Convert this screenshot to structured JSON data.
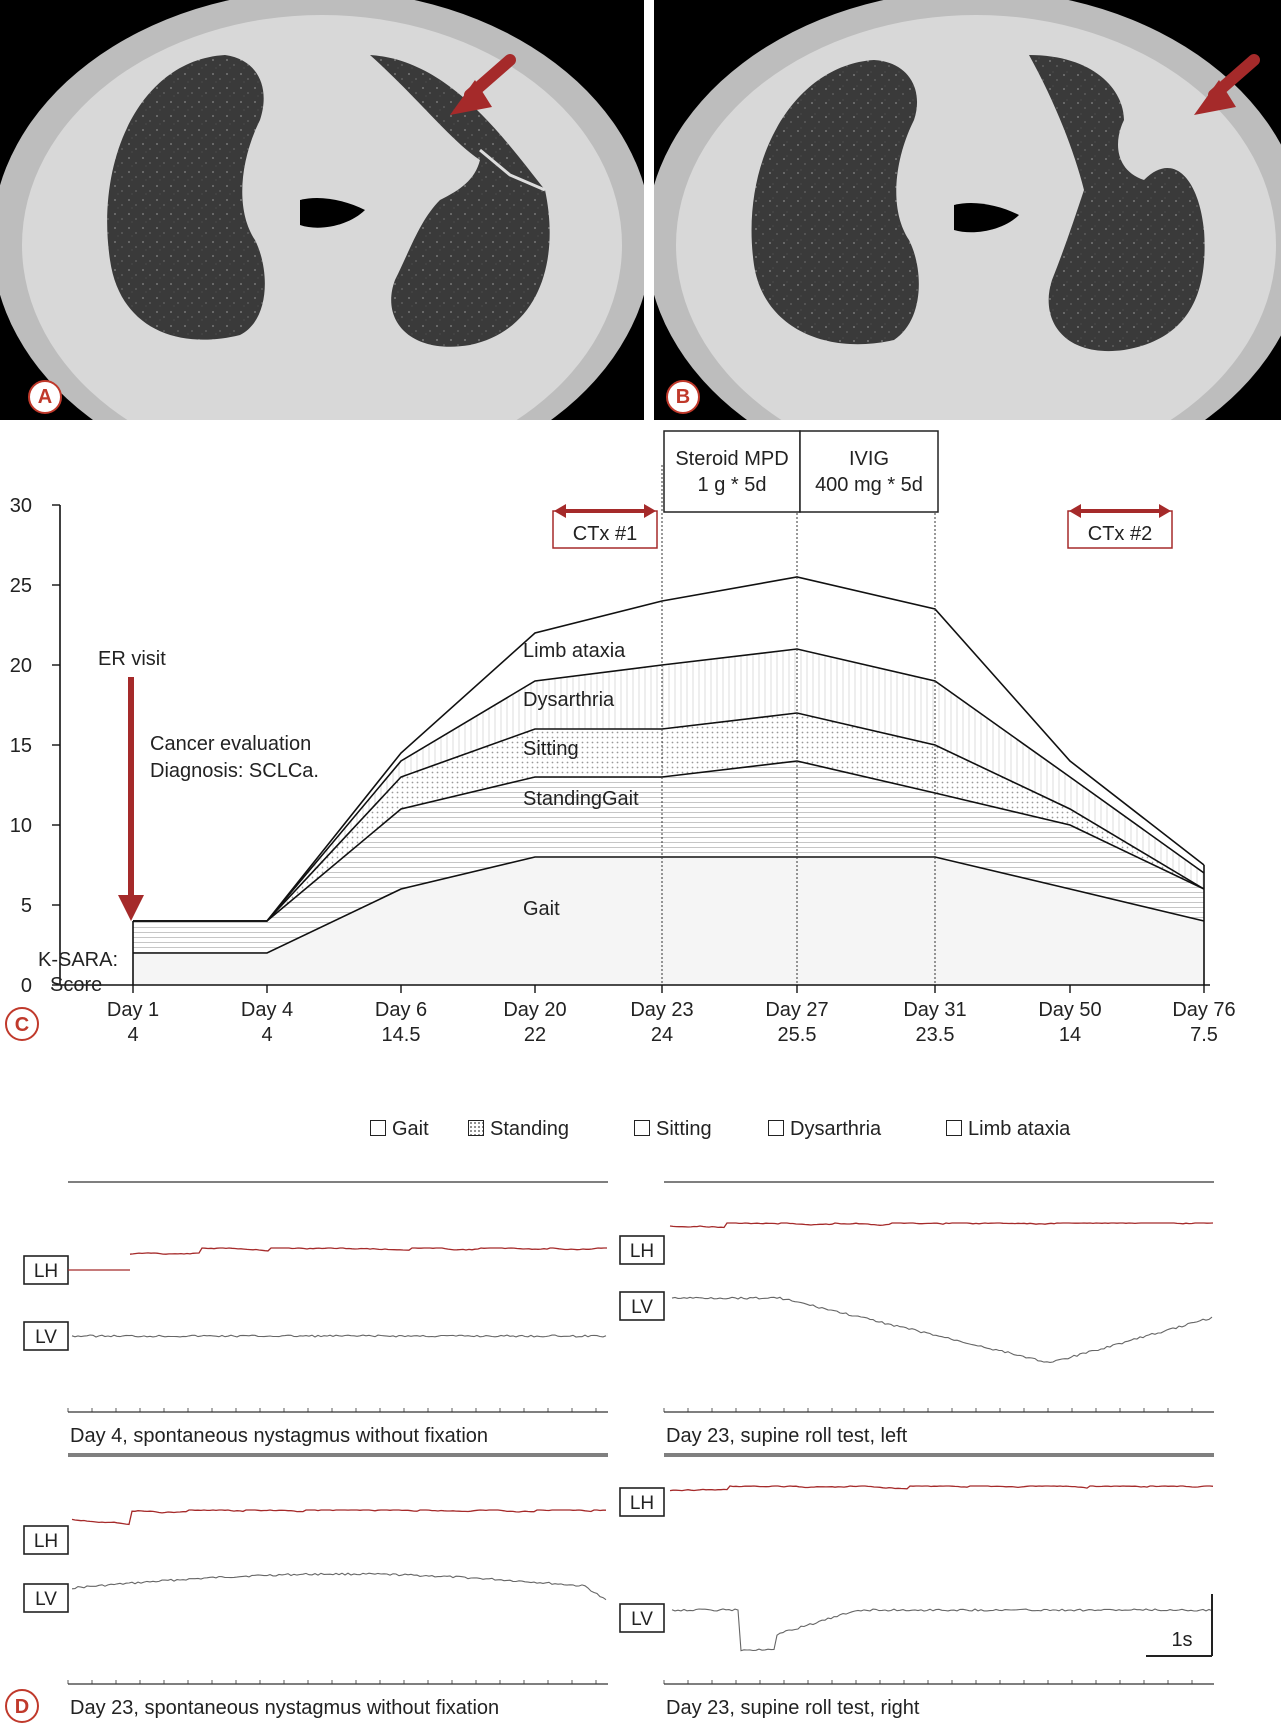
{
  "panel_a": {
    "letter": "A"
  },
  "panel_b": {
    "letter": "B"
  },
  "panel_c": {
    "letter": "C"
  },
  "panel_d": {
    "letter": "D"
  },
  "chart_data": {
    "type": "area",
    "ylim": [
      0,
      30
    ],
    "y_ticks": [
      0,
      5,
      10,
      15,
      20,
      25,
      30
    ],
    "categories": [
      "Day 1",
      "Day 4",
      "Day 6",
      "Day 20",
      "Day 23",
      "Day 27",
      "Day 31",
      "Day 50",
      "Day 76"
    ],
    "score_label": "K-SARA:",
    "score_label2": "Score",
    "scores": [
      "4",
      "4",
      "14.5",
      "22",
      "24",
      "25.5",
      "23.5",
      "14",
      "7.5"
    ],
    "series": [
      {
        "name": "Gait",
        "values": [
          2,
          2,
          6,
          8,
          8,
          8,
          8,
          6,
          4
        ]
      },
      {
        "name": "StandingGait",
        "values": [
          4,
          4,
          11,
          13,
          13,
          14,
          12,
          10,
          6
        ]
      },
      {
        "name": "Sitting",
        "values": [
          4,
          4,
          13,
          16,
          16,
          17,
          15,
          11,
          6
        ]
      },
      {
        "name": "Dysarthria",
        "values": [
          4,
          4,
          14,
          19,
          20,
          21,
          19,
          13,
          7
        ]
      },
      {
        "name": "Limb ataxia",
        "values": [
          4,
          4,
          14.5,
          22,
          24,
          25.5,
          23.5,
          14,
          7.5
        ]
      }
    ],
    "annotations": {
      "er_visit": "ER visit",
      "cancer_eval_1": "Cancer evaluation",
      "cancer_eval_2": "Diagnosis: SCLCa.",
      "ctx1": "CTx #1",
      "ctx2": "CTx #2",
      "steroid_1": "Steroid MPD",
      "steroid_2": "1 g * 5d",
      "ivig_1": "IVIG",
      "ivig_2": "400 mg * 5d"
    },
    "legend": [
      "Gait",
      "Standing",
      "Sitting",
      "Dysarthria",
      "Limb ataxia"
    ]
  },
  "nystagmus": {
    "scale_label": "1s",
    "panels": [
      {
        "caption": "Day 4, spontaneous nystagmus without fixation",
        "lh": "LH",
        "lv": "LV"
      },
      {
        "caption": "Day 23, supine roll test, left",
        "lh": "LH",
        "lv": "LV"
      },
      {
        "caption": "Day 23, spontaneous nystagmus without fixation",
        "lh": "LH",
        "lv": "LV"
      },
      {
        "caption": "Day 23, supine roll test, right",
        "lh": "LH",
        "lv": "LV"
      }
    ]
  },
  "colors": {
    "arrow": "#a52a2a",
    "trace_lh": "#a52a2a",
    "trace_lv": "#666666"
  }
}
